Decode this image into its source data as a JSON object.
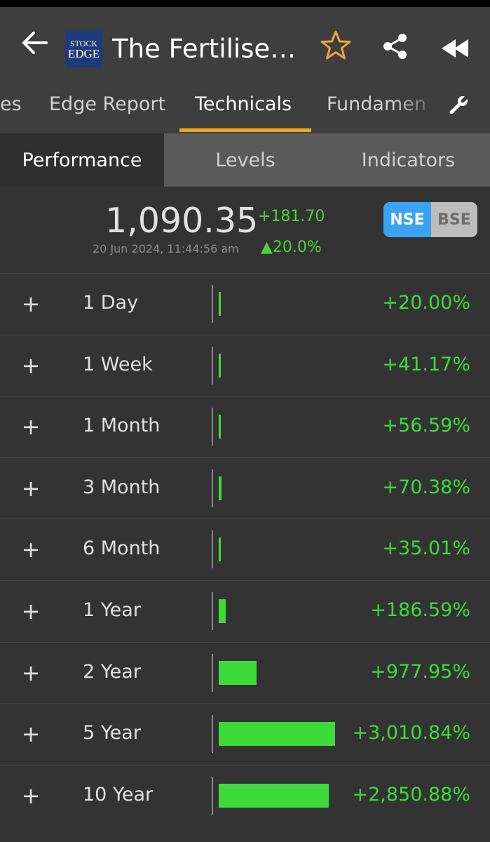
{
  "header": {
    "title": "The Fertilise…",
    "logo_line1": "STOCK",
    "logo_line2": "EDGE",
    "icons": [
      "back-arrow-icon",
      "star-icon",
      "share-icon",
      "rewind-icon"
    ],
    "star_color": "#f0a23a"
  },
  "tabs": [
    {
      "label": "es"
    },
    {
      "label": "Edge Report"
    },
    {
      "label": "Technicals",
      "active": true
    },
    {
      "label": "Fundamen"
    }
  ],
  "subtabs": [
    {
      "label": "Performance",
      "active": true
    },
    {
      "label": "Levels"
    },
    {
      "label": "Indicators"
    }
  ],
  "quote": {
    "price": "1,090.35",
    "change_abs": "+181.70",
    "change_pct": "▲20.0%",
    "timestamp": "20 Jun 2024, 11:44:56 am",
    "exchange_selected": "NSE",
    "exchanges": [
      "NSE",
      "BSE"
    ]
  },
  "performance": {
    "positive_color": "#3ddb3a",
    "bar_scale_max_pct": 3010.84,
    "rows": [
      {
        "period": "1 Day",
        "value": "+20.00%",
        "pct": 20.0
      },
      {
        "period": "1 Week",
        "value": "+41.17%",
        "pct": 41.17
      },
      {
        "period": "1 Month",
        "value": "+56.59%",
        "pct": 56.59
      },
      {
        "period": "3 Month",
        "value": "+70.38%",
        "pct": 70.38
      },
      {
        "period": "6 Month",
        "value": "+35.01%",
        "pct": 35.01
      },
      {
        "period": "1 Year",
        "value": "+186.59%",
        "pct": 186.59
      },
      {
        "period": "2 Year",
        "value": "+977.95%",
        "pct": 977.95
      },
      {
        "period": "5 Year",
        "value": "+3,010.84%",
        "pct": 3010.84
      },
      {
        "period": "10 Year",
        "value": "+2,850.88%",
        "pct": 2850.88
      }
    ]
  }
}
